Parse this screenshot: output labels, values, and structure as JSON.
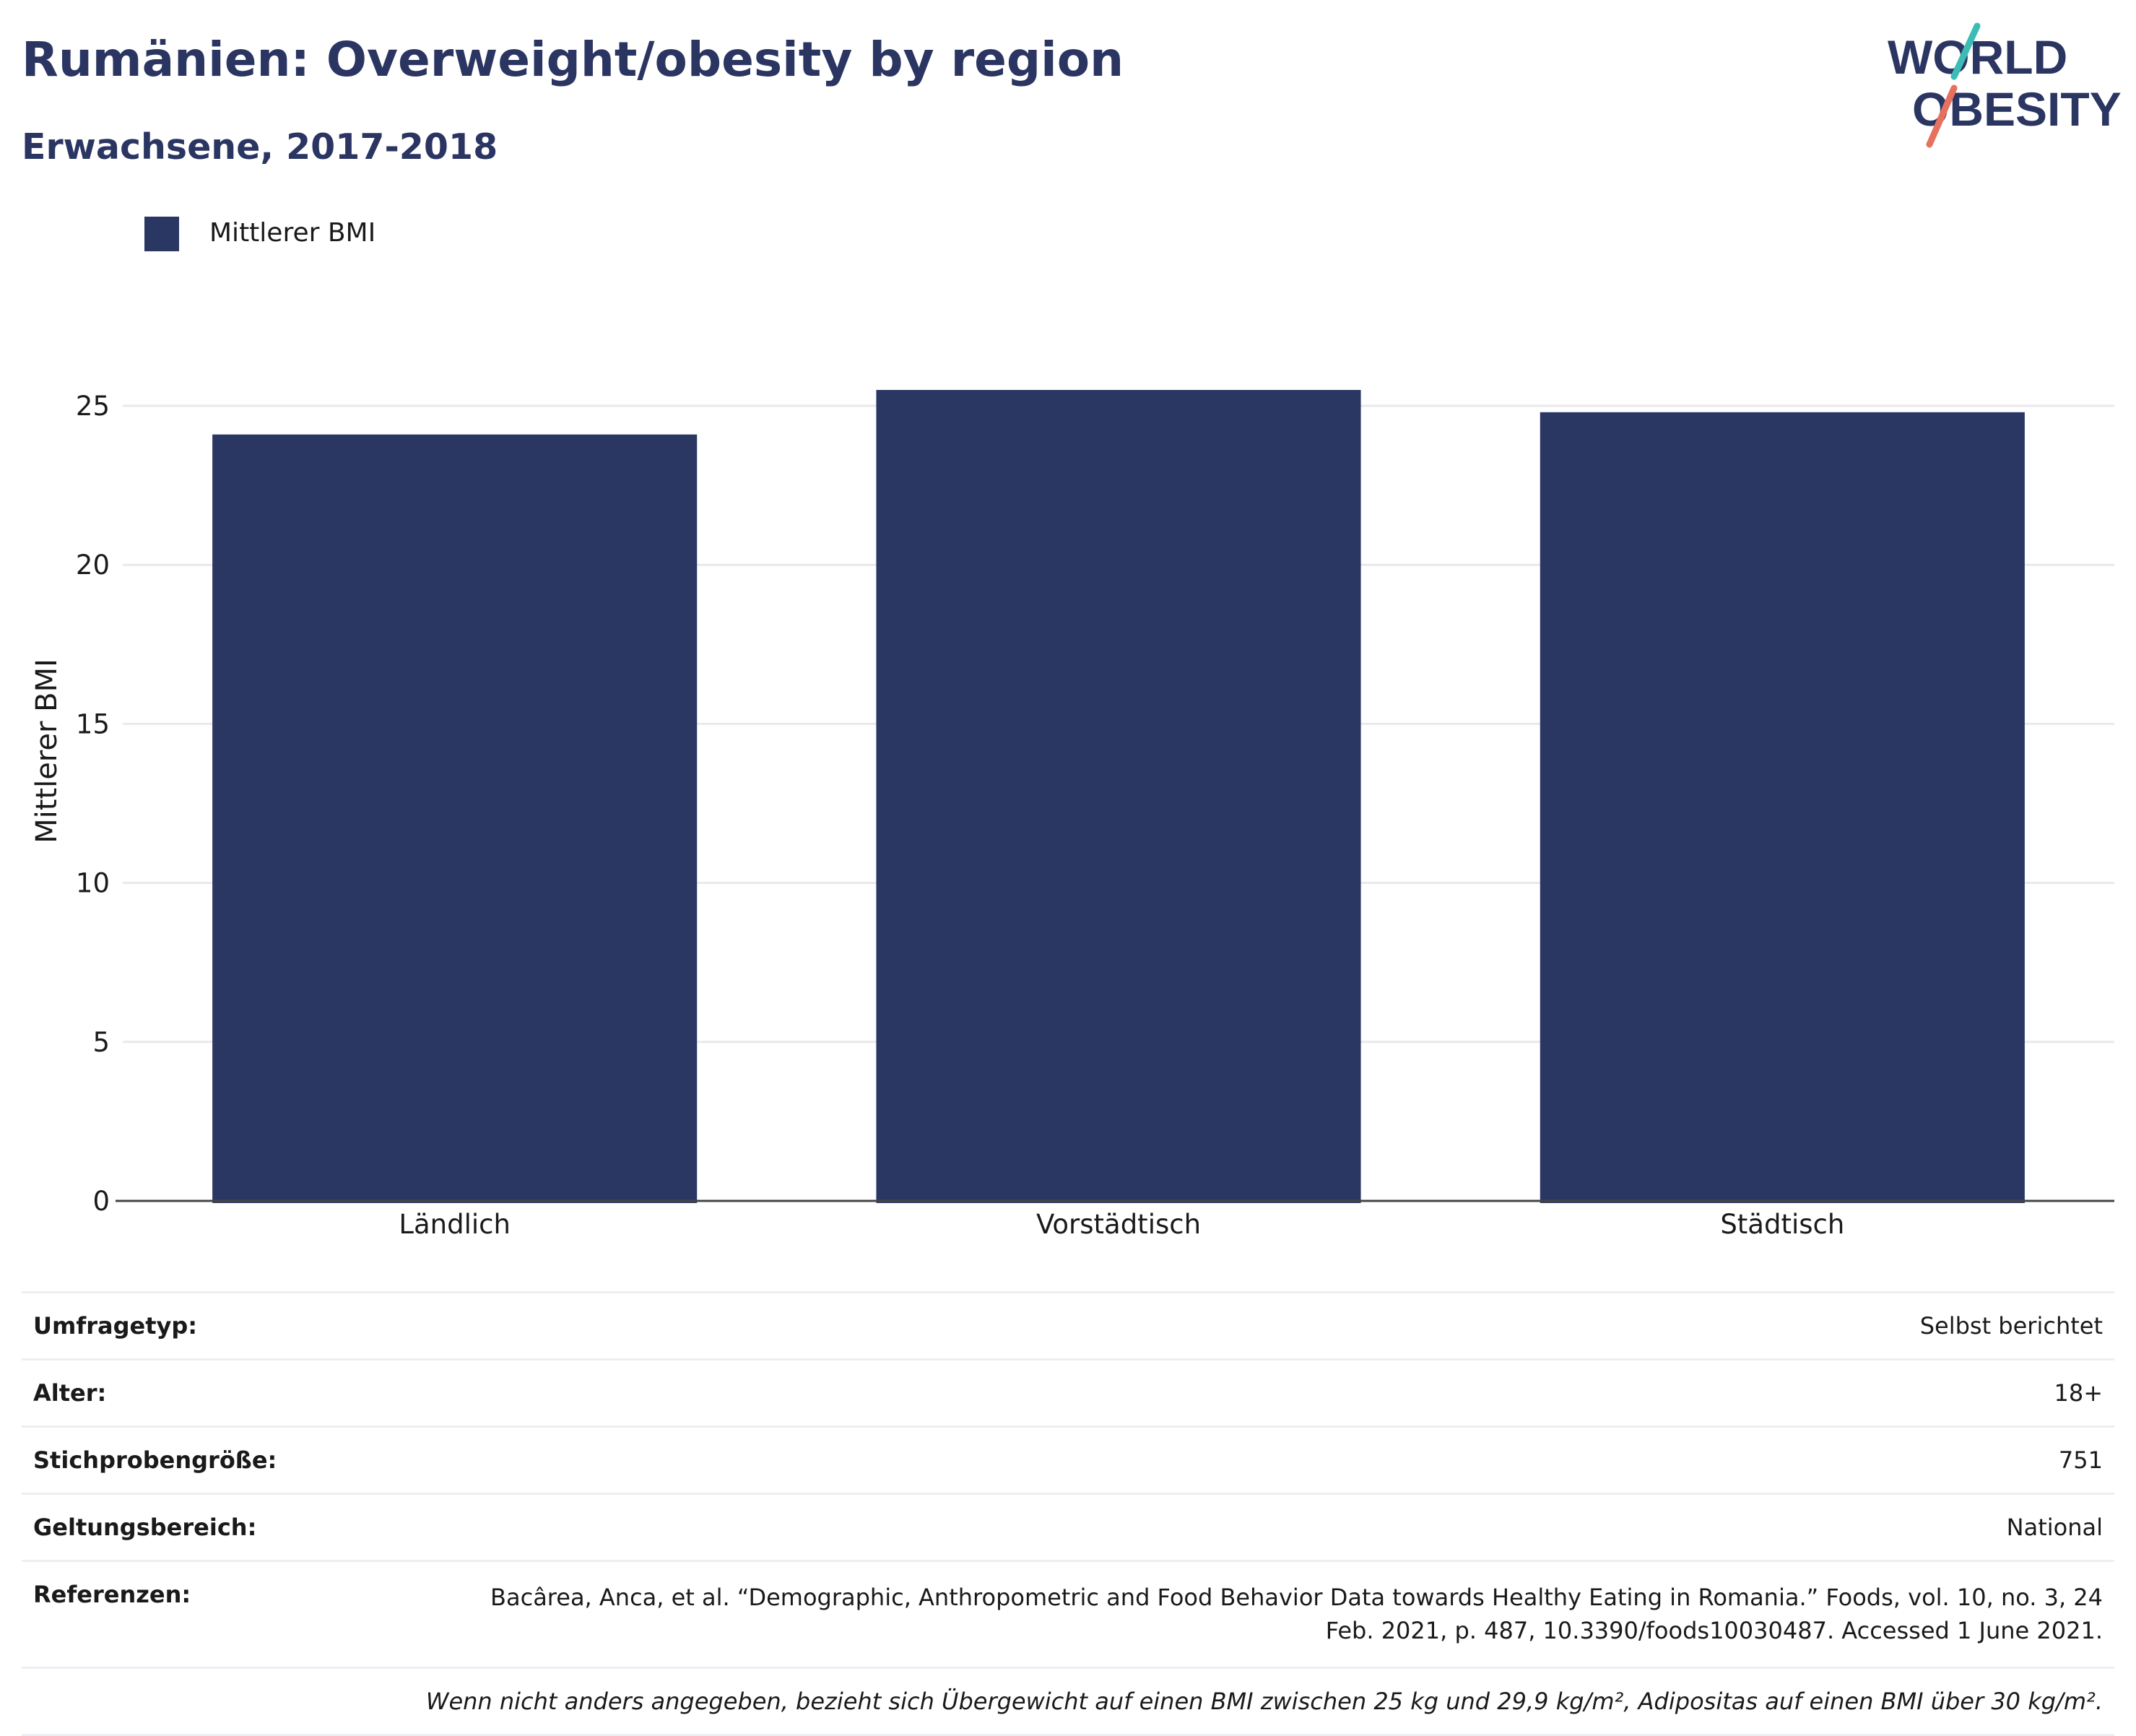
{
  "header": {
    "title": "Rumänien: Overweight/obesity by region",
    "subtitle": "Erwachsene, 2017-2018"
  },
  "logo": {
    "line1": "WORLD",
    "line2": "OBESITY",
    "colors": {
      "text": "#2b3562",
      "slash_top": "#3bbcb4",
      "slash_bottom": "#e8705f"
    }
  },
  "colors": {
    "bar": "#2b3763",
    "gridline": "#e8e8ee",
    "axis_line": "#444444"
  },
  "chart_data": {
    "type": "bar",
    "title": "Rumänien: Overweight/obesity by region",
    "subtitle": "Erwachsene, 2017-2018",
    "categories": [
      "Ländlich",
      "Vorstädtisch",
      "Städtisch"
    ],
    "series": [
      {
        "name": "Mittlerer BMI",
        "values": [
          24.1,
          25.5,
          24.8
        ]
      }
    ],
    "xlabel": "",
    "ylabel": "Mittlerer BMI",
    "ylim": [
      0,
      25.5
    ],
    "yticks": [
      0,
      5,
      10,
      15,
      20,
      25
    ],
    "grid": true,
    "legend_position": "top-left"
  },
  "info": {
    "rows": [
      {
        "label": "Umfragetyp:",
        "value": "Selbst berichtet"
      },
      {
        "label": "Alter:",
        "value": "18+"
      },
      {
        "label": "Stichprobengröße:",
        "value": "751"
      },
      {
        "label": "Geltungsbereich:",
        "value": "National"
      },
      {
        "label": "Referenzen:",
        "value": "Bacârea, Anca, et al. “Demographic, Anthropometric and Food Behavior Data towards Healthy Eating in Romania.” Foods, vol. 10, no. 3, 24 Feb. 2021, p. 487, 10.3390/foods10030487. Accessed 1 June 2021."
      }
    ],
    "note": "Wenn nicht anders angegeben, bezieht sich Übergewicht auf einen BMI zwischen 25 kg und 29,9 kg/m², Adipositas auf einen BMI über 30 kg/m²."
  }
}
